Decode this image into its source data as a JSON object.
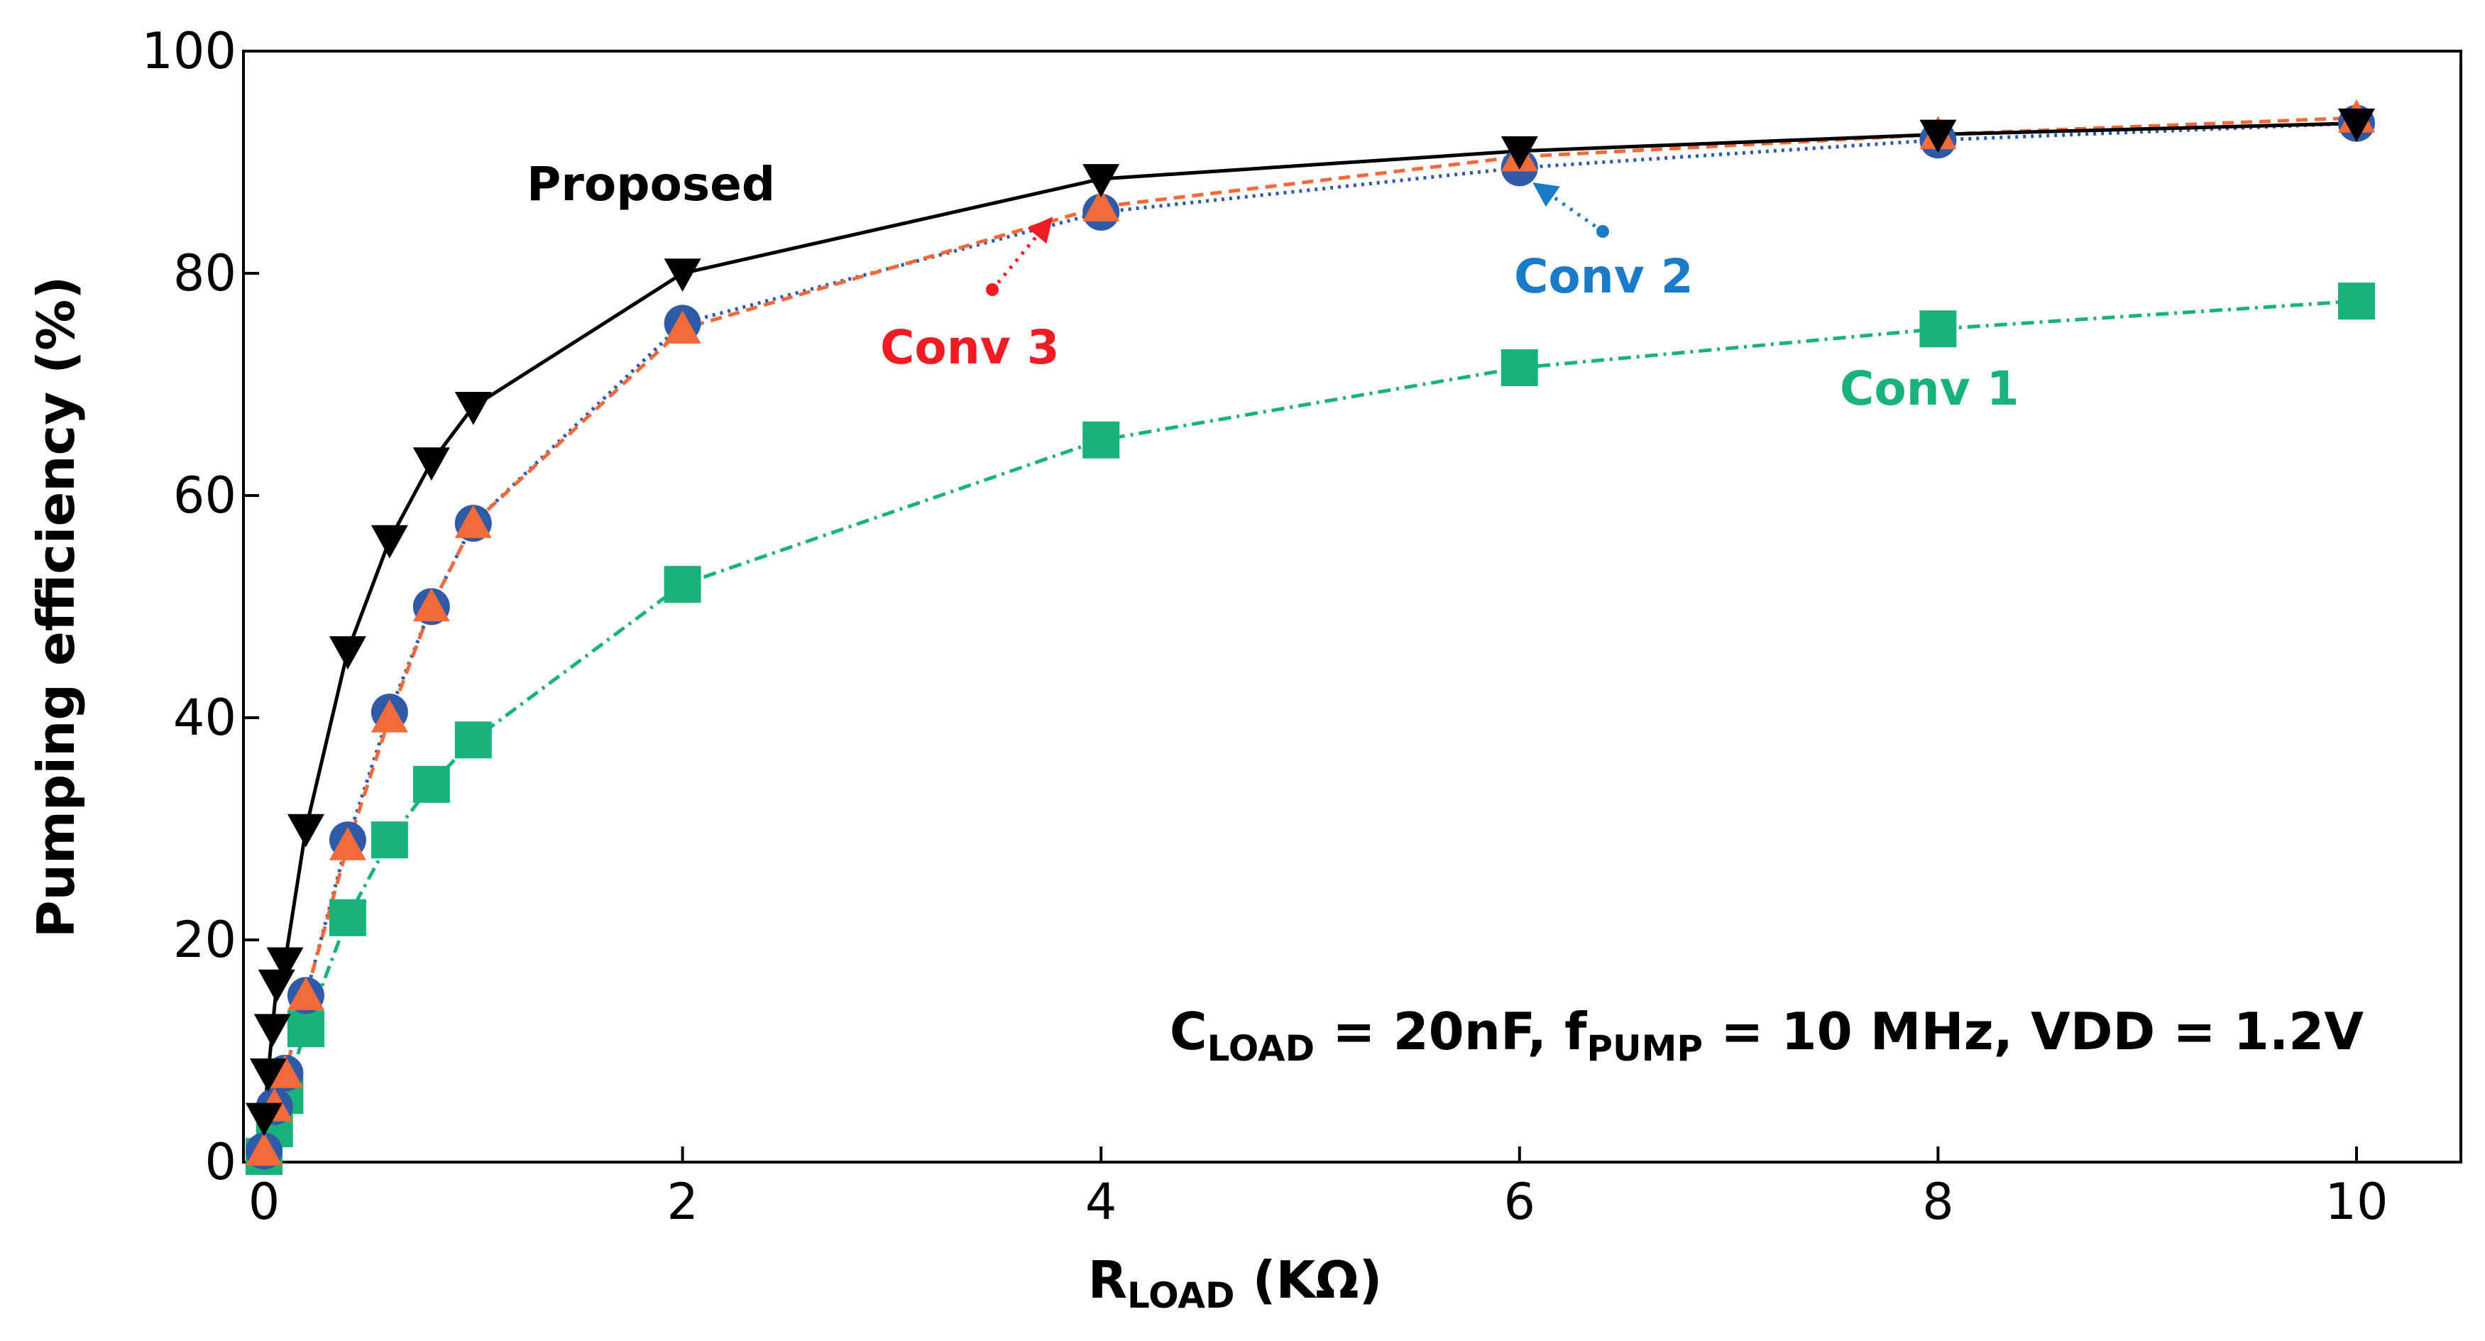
{
  "chart_data": {
    "type": "line",
    "xlabel_main": "R",
    "xlabel_sub": "LOAD",
    "xlabel_unit": " (KΩ)",
    "ylabel": "Pumping efficiency (%)",
    "xlim": [
      0,
      10
    ],
    "ylim": [
      0,
      100
    ],
    "xticks": [
      0,
      2,
      4,
      6,
      8,
      10
    ],
    "yticks": [
      0,
      20,
      40,
      60,
      80,
      100
    ],
    "grid": false,
    "conditions": {
      "c_main": "C",
      "c_sub": "LOAD",
      "c_val": " = 20nF, f",
      "f_sub": "PUMP",
      "f_val": " = 10 MHz, VDD = 1.2V"
    },
    "series": [
      {
        "name": "Conv 1",
        "color": "#19b27a",
        "dash": "dashdot",
        "marker": "square",
        "x": [
          0,
          0.05,
          0.1,
          0.2,
          0.4,
          0.6,
          0.8,
          1,
          2,
          4,
          6,
          8,
          10
        ],
        "values": [
          0.5,
          3,
          6,
          12,
          22,
          29,
          34,
          38,
          52,
          65,
          71.5,
          75,
          77.5
        ]
      },
      {
        "name": "Conv 2",
        "color": "#2e5aa8",
        "dash": "dot",
        "marker": "circle",
        "x": [
          0,
          0.05,
          0.1,
          0.2,
          0.4,
          0.6,
          0.8,
          1,
          2,
          4,
          6,
          8,
          10
        ],
        "values": [
          1,
          5,
          8,
          15,
          29,
          40.5,
          50,
          57.5,
          75.5,
          85.5,
          89.5,
          92,
          93.5
        ]
      },
      {
        "name": "Conv 3",
        "color": "#f06a3a",
        "dash": "dash",
        "marker": "triangle-up",
        "x": [
          0,
          0.05,
          0.1,
          0.2,
          0.4,
          0.6,
          0.8,
          1,
          2,
          4,
          6,
          8,
          10
        ],
        "values": [
          1,
          5,
          8,
          15,
          28.5,
          40,
          50,
          57.5,
          75,
          86,
          90.5,
          92.5,
          94
        ]
      },
      {
        "name": "Proposed",
        "color": "#000000",
        "dash": "solid",
        "marker": "triangle-down",
        "x": [
          0,
          0.02,
          0.04,
          0.06,
          0.1,
          0.2,
          0.4,
          0.6,
          0.8,
          1,
          2,
          4,
          6,
          8,
          10
        ],
        "values": [
          4,
          8,
          12,
          16,
          18,
          30,
          46,
          56,
          63,
          68,
          80,
          88.5,
          91,
          92.5,
          93.5
        ]
      }
    ],
    "annotations": {
      "proposed": "Proposed",
      "conv1": "Conv 1",
      "conv2": "Conv 2",
      "conv3": "Conv 3",
      "conv2_color": "#1a7bc9",
      "conv3_color": "#ee1d24",
      "conv1_color": "#19b27a"
    }
  }
}
